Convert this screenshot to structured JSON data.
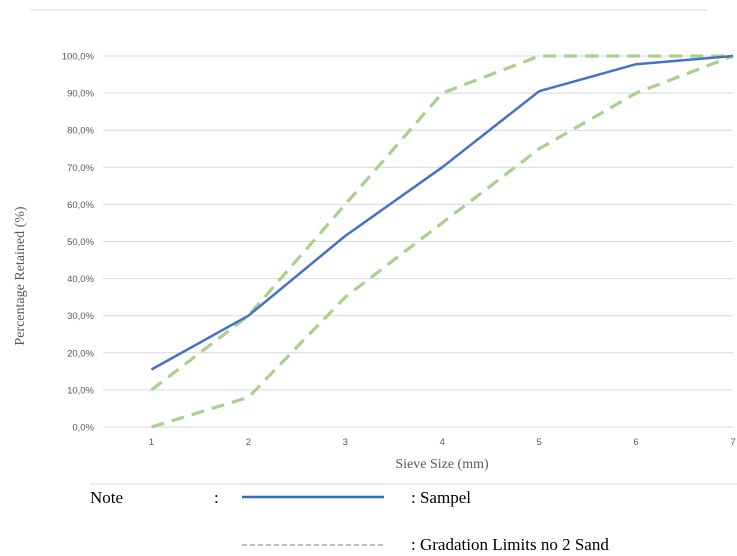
{
  "chart_data": {
    "type": "line",
    "x": [
      1,
      2,
      3,
      4,
      5,
      6,
      7
    ],
    "xlabel": "Sieve Size (mm)",
    "ylabel": "Percentage Retained (%)",
    "ylim": [
      0,
      100
    ],
    "xlim": [
      0.5,
      7
    ],
    "x_tick_labels": [
      "1",
      "2",
      "3",
      "4",
      "5",
      "6",
      "7"
    ],
    "y_tick_labels": [
      "0,0%",
      "10,0%",
      "20,0%",
      "30,0%",
      "40,0%",
      "50,0%",
      "60,0%",
      "70,0%",
      "80,0%",
      "90,0%",
      "100,0%"
    ],
    "grid": true,
    "series": [
      {
        "name": "Sampel",
        "values": [
          15.5,
          30,
          51.5,
          70,
          90.5,
          97.8,
          100
        ],
        "color": "#4472c4",
        "style": "solid"
      },
      {
        "values": [
          10,
          30,
          60,
          90,
          100,
          100,
          100
        ],
        "color": "#a9d18e",
        "style": "dashed"
      },
      {
        "values": [
          0,
          8,
          35,
          55,
          75,
          90,
          100
        ],
        "color": "#a9d18e",
        "style": "dashed"
      }
    ]
  },
  "note": {
    "label": "Note",
    "colon": ":",
    "entries": [
      {
        "text": ": Sampel",
        "color": "#2e75b6",
        "style": "solid"
      },
      {
        "text": ": Gradation Limits no 2 Sand",
        "color": "#a6a6a6",
        "style": "dashed"
      }
    ]
  }
}
